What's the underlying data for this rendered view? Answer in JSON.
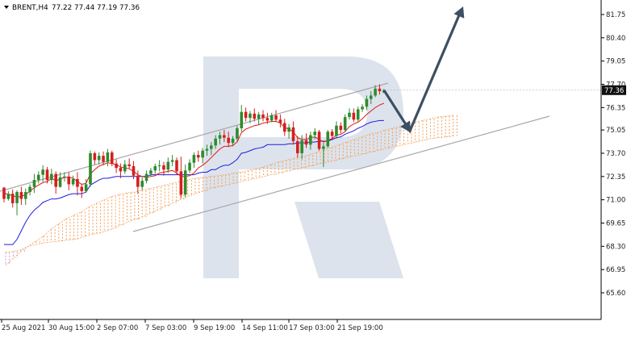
{
  "header": {
    "symbol": "BRENT,H4",
    "ohlc": "77.22 77.44 77.19 77.36"
  },
  "price_axis": {
    "labels": [
      "81.75",
      "80.40",
      "79.05",
      "77.70",
      "76.35",
      "75.05",
      "73.70",
      "72.35",
      "71.00",
      "69.65",
      "68.30",
      "66.95",
      "65.60"
    ],
    "current_price": "77.36"
  },
  "time_axis": {
    "labels": [
      "25 Aug 2021",
      "30 Aug 15:00",
      "2 Sep 07:00",
      "7 Sep 03:00",
      "9 Sep 19:00",
      "14 Sep 11:00",
      "17 Sep 03:00",
      "21 Sep 19:00"
    ]
  },
  "colors": {
    "bull": "#2e8b2e",
    "bear": "#d41f1f",
    "tenkan": "#e01818",
    "kijun": "#1c1ce0",
    "cloud_bull": "#f2a05a",
    "cloud_bear": "#c79ad6",
    "channel": "#a8a8a8",
    "forecast_arrow": "#3d4f63",
    "watermark": "#dde3ec"
  },
  "chart_data": {
    "type": "candlestick",
    "title": "BRENT,H4",
    "ylim": [
      65.6,
      82.4
    ],
    "y_ticks": [
      81.75,
      80.4,
      79.05,
      77.7,
      76.35,
      75.05,
      73.7,
      72.35,
      71.0,
      69.65,
      68.3,
      66.95,
      65.6
    ],
    "x_ticks": [
      "25 Aug 2021",
      "30 Aug 15:00",
      "2 Sep 07:00",
      "7 Sep 03:00",
      "9 Sep 19:00",
      "14 Sep 11:00",
      "17 Sep 03:00",
      "21 Sep 19:00"
    ],
    "grid": false,
    "current_price": 77.36,
    "candles": [
      [
        71.7,
        71.75,
        70.85,
        71.05
      ],
      [
        71.05,
        71.5,
        70.95,
        71.35
      ],
      [
        71.35,
        71.6,
        70.55,
        70.8
      ],
      [
        70.8,
        71.55,
        70.1,
        71.45
      ],
      [
        71.45,
        71.75,
        70.7,
        71.05
      ],
      [
        71.05,
        71.65,
        70.7,
        71.45
      ],
      [
        71.45,
        71.9,
        71.25,
        71.75
      ],
      [
        71.75,
        72.5,
        71.4,
        72.15
      ],
      [
        72.15,
        72.65,
        71.95,
        72.45
      ],
      [
        72.45,
        73.0,
        72.05,
        72.75
      ],
      [
        72.75,
        72.9,
        71.95,
        72.15
      ],
      [
        72.15,
        72.8,
        71.9,
        72.5
      ],
      [
        72.5,
        72.65,
        71.35,
        71.75
      ],
      [
        71.75,
        72.6,
        71.7,
        72.3
      ],
      [
        72.3,
        72.6,
        72.05,
        72.35
      ],
      [
        72.35,
        72.6,
        71.55,
        71.9
      ],
      [
        71.9,
        72.4,
        71.8,
        72.2
      ],
      [
        72.2,
        72.6,
        71.25,
        71.75
      ],
      [
        71.75,
        71.9,
        71.1,
        71.5
      ],
      [
        71.5,
        72.2,
        71.4,
        71.9
      ],
      [
        71.9,
        73.85,
        71.75,
        73.7
      ],
      [
        73.7,
        73.8,
        73.05,
        73.3
      ],
      [
        73.3,
        73.75,
        73.05,
        73.55
      ],
      [
        73.55,
        73.8,
        73.0,
        73.2
      ],
      [
        73.2,
        73.95,
        72.95,
        73.75
      ],
      [
        73.75,
        73.85,
        72.95,
        73.1
      ],
      [
        73.1,
        73.35,
        72.55,
        72.85
      ],
      [
        72.85,
        73.1,
        72.25,
        72.65
      ],
      [
        72.65,
        73.3,
        72.5,
        73.05
      ],
      [
        73.05,
        73.4,
        72.8,
        72.95
      ],
      [
        72.95,
        73.25,
        72.2,
        72.4
      ],
      [
        72.4,
        72.7,
        71.35,
        71.75
      ],
      [
        71.75,
        72.3,
        71.55,
        72.1
      ],
      [
        72.1,
        72.7,
        71.95,
        72.5
      ],
      [
        72.5,
        72.85,
        72.35,
        72.7
      ],
      [
        72.7,
        73.1,
        72.5,
        72.95
      ],
      [
        72.95,
        73.3,
        72.65,
        73.0
      ],
      [
        73.0,
        73.2,
        72.4,
        72.75
      ],
      [
        72.75,
        73.45,
        72.55,
        73.2
      ],
      [
        73.2,
        73.6,
        72.95,
        73.3
      ],
      [
        73.3,
        73.45,
        72.45,
        72.65
      ],
      [
        72.65,
        73.5,
        71.1,
        71.3
      ],
      [
        71.3,
        73.05,
        71.15,
        72.7
      ],
      [
        72.7,
        73.35,
        72.55,
        73.15
      ],
      [
        73.15,
        73.75,
        72.85,
        73.6
      ],
      [
        73.6,
        73.85,
        73.2,
        73.45
      ],
      [
        73.45,
        74.0,
        73.1,
        73.85
      ],
      [
        73.85,
        74.2,
        73.55,
        73.95
      ],
      [
        73.95,
        74.35,
        73.6,
        74.15
      ],
      [
        74.15,
        74.75,
        73.95,
        74.55
      ],
      [
        74.55,
        74.95,
        74.2,
        74.75
      ],
      [
        74.75,
        75.05,
        74.35,
        74.6
      ],
      [
        74.6,
        74.95,
        74.05,
        74.3
      ],
      [
        74.3,
        74.7,
        74.1,
        74.55
      ],
      [
        74.55,
        75.3,
        74.4,
        75.15
      ],
      [
        75.15,
        76.5,
        74.95,
        76.1
      ],
      [
        76.1,
        76.35,
        75.55,
        75.75
      ],
      [
        75.75,
        76.15,
        75.45,
        76.0
      ],
      [
        76.0,
        76.3,
        75.55,
        75.7
      ],
      [
        75.7,
        76.1,
        75.35,
        75.95
      ],
      [
        75.95,
        76.2,
        75.55,
        75.75
      ],
      [
        75.75,
        76.05,
        75.4,
        75.6
      ],
      [
        75.6,
        76.05,
        75.5,
        75.9
      ],
      [
        75.9,
        76.2,
        75.5,
        75.65
      ],
      [
        75.65,
        75.95,
        75.2,
        75.45
      ],
      [
        75.45,
        75.7,
        74.7,
        74.95
      ],
      [
        74.95,
        75.4,
        74.55,
        75.2
      ],
      [
        75.2,
        75.55,
        74.2,
        74.4
      ],
      [
        74.4,
        74.7,
        73.45,
        73.7
      ],
      [
        73.7,
        74.75,
        73.35,
        74.45
      ],
      [
        74.45,
        74.85,
        74.0,
        74.2
      ],
      [
        74.2,
        74.95,
        73.9,
        74.75
      ],
      [
        74.75,
        75.15,
        74.5,
        74.95
      ],
      [
        74.95,
        75.05,
        73.85,
        73.95
      ],
      [
        73.95,
        74.3,
        72.9,
        74.1
      ],
      [
        74.1,
        75.05,
        74.0,
        74.95
      ],
      [
        74.95,
        75.1,
        74.45,
        74.7
      ],
      [
        74.7,
        75.55,
        74.55,
        75.3
      ],
      [
        75.3,
        75.5,
        74.85,
        75.05
      ],
      [
        75.05,
        75.95,
        74.95,
        75.8
      ],
      [
        75.8,
        76.3,
        75.65,
        76.05
      ],
      [
        76.05,
        76.3,
        75.5,
        75.65
      ],
      [
        75.65,
        76.4,
        75.55,
        76.25
      ],
      [
        76.25,
        76.55,
        76.1,
        76.4
      ],
      [
        76.4,
        77.05,
        76.2,
        76.85
      ],
      [
        76.85,
        77.3,
        76.55,
        77.05
      ],
      [
        77.05,
        77.65,
        76.95,
        77.45
      ],
      [
        77.45,
        77.7,
        77.1,
        77.3
      ],
      [
        77.22,
        77.44,
        77.19,
        77.36
      ]
    ],
    "tenkan": [
      71.4,
      71.3,
      71.25,
      71.15,
      71.2,
      71.3,
      71.5,
      71.7,
      71.85,
      72.0,
      72.05,
      72.25,
      72.1,
      72.2,
      72.3,
      72.3,
      72.25,
      72.05,
      71.9,
      71.95,
      72.5,
      72.75,
      72.95,
      73.05,
      73.15,
      73.1,
      73.05,
      72.9,
      72.85,
      72.8,
      72.65,
      72.45,
      72.35,
      72.3,
      72.35,
      72.4,
      72.55,
      72.6,
      72.65,
      72.7,
      72.55,
      72.35,
      72.35,
      72.4,
      72.55,
      72.85,
      73.0,
      73.2,
      73.45,
      73.7,
      73.95,
      74.1,
      74.1,
      74.15,
      74.35,
      74.9,
      75.1,
      75.2,
      75.3,
      75.35,
      75.45,
      75.5,
      75.55,
      75.55,
      75.45,
      75.2,
      75.1,
      74.95,
      74.6,
      74.5,
      74.5,
      74.6,
      74.65,
      74.5,
      74.35,
      74.45,
      74.55,
      74.75,
      74.8,
      74.95,
      75.25,
      75.4,
      75.5,
      75.7,
      75.95,
      76.15,
      76.35,
      76.5,
      76.6
    ],
    "kijun": [
      68.4,
      68.4,
      68.4,
      68.7,
      69.2,
      69.7,
      70.1,
      70.4,
      70.6,
      70.85,
      70.95,
      71.05,
      71.05,
      71.1,
      71.2,
      71.3,
      71.35,
      71.35,
      71.35,
      71.45,
      71.85,
      72.0,
      72.15,
      72.25,
      72.25,
      72.3,
      72.35,
      72.35,
      72.35,
      72.35,
      72.35,
      72.35,
      72.35,
      72.35,
      72.45,
      72.45,
      72.45,
      72.45,
      72.45,
      72.45,
      72.45,
      72.45,
      72.45,
      72.45,
      72.45,
      72.55,
      72.6,
      72.6,
      72.75,
      72.75,
      72.9,
      73.0,
      73.0,
      73.15,
      73.35,
      73.7,
      73.75,
      73.85,
      73.95,
      74.0,
      74.05,
      74.2,
      74.2,
      74.2,
      74.2,
      74.2,
      74.25,
      74.25,
      74.3,
      74.3,
      74.3,
      74.35,
      74.35,
      74.4,
      74.4,
      74.4,
      74.5,
      74.6,
      74.65,
      74.8,
      74.9,
      75.0,
      75.15,
      75.25,
      75.4,
      75.5,
      75.55,
      75.6,
      75.6
    ],
    "cloud": {
      "span_a": [
        67.2,
        67.6,
        68.0,
        68.3,
        68.6,
        68.9,
        69.3,
        69.6,
        69.9,
        70.1,
        70.3,
        70.6,
        70.8,
        71.0,
        71.2,
        71.3,
        71.4,
        71.45,
        71.55,
        71.65,
        71.75,
        71.85,
        71.95,
        72.05,
        72.15,
        72.25,
        72.3,
        72.35,
        72.4,
        72.45,
        72.55,
        72.6,
        72.7,
        72.8,
        72.9,
        73.05,
        73.2,
        73.3,
        73.4,
        73.5,
        73.6,
        73.75,
        73.9,
        74.05,
        74.2,
        74.35,
        74.5,
        74.65,
        74.8,
        74.9,
        75.05,
        75.15,
        75.25,
        75.4,
        75.5,
        75.6,
        75.7,
        75.8,
        75.85,
        75.9
      ],
      "span_b": [
        67.95,
        68.0,
        68.1,
        68.3,
        68.4,
        68.5,
        68.55,
        68.6,
        68.65,
        68.7,
        68.8,
        68.95,
        69.05,
        69.15,
        69.3,
        69.5,
        69.7,
        69.85,
        70.0,
        70.2,
        70.4,
        70.6,
        70.8,
        71.0,
        71.2,
        71.35,
        71.5,
        71.65,
        71.75,
        71.85,
        71.95,
        72.05,
        72.15,
        72.25,
        72.35,
        72.45,
        72.55,
        72.65,
        72.75,
        72.85,
        72.95,
        73.05,
        73.15,
        73.25,
        73.35,
        73.45,
        73.55,
        73.65,
        73.75,
        73.85,
        73.95,
        74.05,
        74.15,
        74.25,
        74.35,
        74.45,
        74.55,
        74.6,
        74.65,
        74.7
      ]
    },
    "channel": {
      "upper": {
        "from": [
          "25 Aug 2021",
          72.15
        ],
        "to": [
          "21 Sep 19:00",
          78.1
        ]
      },
      "lower": {
        "from": [
          "7 Sep 03:00",
          69.95
        ],
        "to": [
          "21 Sep 19:00",
          76.55
        ]
      }
    },
    "forecast_path": [
      77.35,
      75.0,
      81.75
    ]
  }
}
